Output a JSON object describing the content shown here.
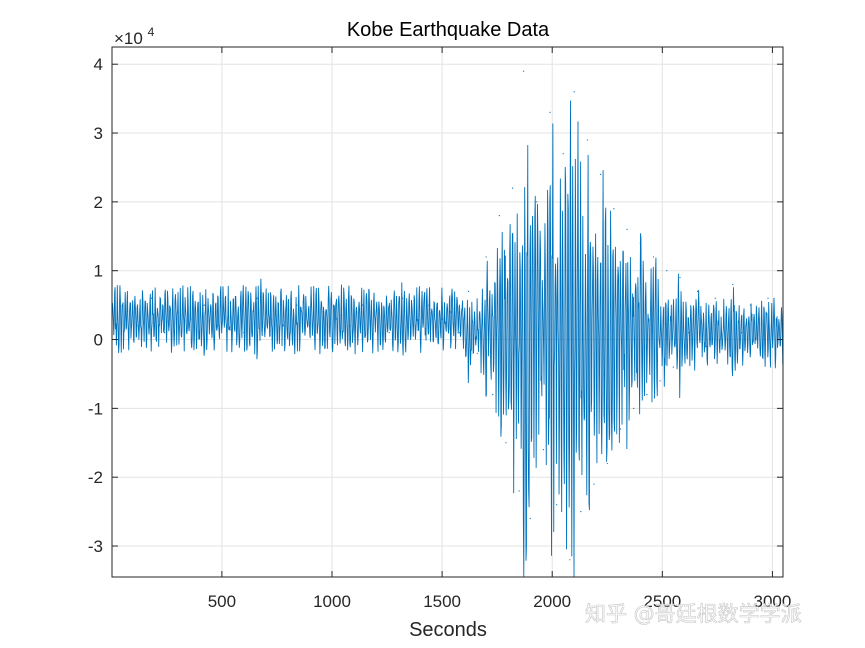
{
  "chart_data": {
    "type": "line",
    "title": "Kobe Earthquake Data",
    "xlabel": "Seconds",
    "ylabel": "",
    "exponent_label": "×10",
    "exponent_power": "4",
    "xlim": [
      1,
      3048
    ],
    "ylim": [
      -3.45,
      4.25
    ],
    "y_scale_factor": 10000,
    "xticks": [
      500,
      1000,
      1500,
      2000,
      2500,
      3000
    ],
    "xtick_labels": [
      "500",
      "1000",
      "1500",
      "2000",
      "2500",
      "3000"
    ],
    "yticks": [
      -3,
      -2,
      -1,
      0,
      1,
      2,
      3,
      4
    ],
    "ytick_labels": [
      "-3",
      "-2",
      "-1",
      "0",
      "1",
      "2",
      "3",
      "4"
    ],
    "grid": true,
    "series": [
      {
        "color": "#0072BD",
        "x": [
          1,
          60,
          120,
          180,
          240,
          300,
          360,
          420,
          480,
          540,
          600,
          660,
          720,
          780,
          840,
          900,
          960,
          1020,
          1080,
          1140,
          1200,
          1260,
          1320,
          1380,
          1440,
          1500,
          1540,
          1580,
          1620,
          1660,
          1700,
          1730,
          1760,
          1790,
          1820,
          1850,
          1870,
          1900,
          1930,
          1960,
          1990,
          2020,
          2050,
          2080,
          2100,
          2130,
          2160,
          2190,
          2220,
          2250,
          2280,
          2310,
          2340,
          2370,
          2400,
          2430,
          2460,
          2490,
          2520,
          2550,
          2580,
          2620,
          2660,
          2700,
          2740,
          2780,
          2820,
          2860,
          2900,
          2940,
          2980,
          3020,
          3048
        ],
        "y": [
          0.3,
          0.5,
          0.2,
          0.6,
          0.1,
          0.4,
          0.3,
          0.5,
          0.2,
          0.4,
          0.1,
          0.6,
          0.3,
          0.2,
          0.5,
          0.1,
          0.4,
          0.3,
          0.2,
          0.5,
          0.4,
          0.1,
          0.6,
          0.2,
          0.5,
          0.3,
          0.4,
          0.1,
          0.7,
          -0.2,
          1.2,
          -0.8,
          1.8,
          -1.5,
          2.2,
          -2.2,
          3.9,
          -2.6,
          2.0,
          -1.6,
          3.3,
          -2.4,
          2.7,
          -3.2,
          3.6,
          -2.5,
          2.9,
          -2.1,
          2.4,
          -1.8,
          1.9,
          -1.3,
          1.6,
          -1.0,
          1.4,
          -0.8,
          1.2,
          -0.6,
          1.0,
          -0.4,
          0.9,
          0.1,
          0.7,
          -0.1,
          0.6,
          0.2,
          0.8,
          0.1,
          0.5,
          0.3,
          0.6,
          0.2,
          0.4
        ]
      }
    ]
  },
  "watermark": "知乎 @哥廷根数学学派"
}
